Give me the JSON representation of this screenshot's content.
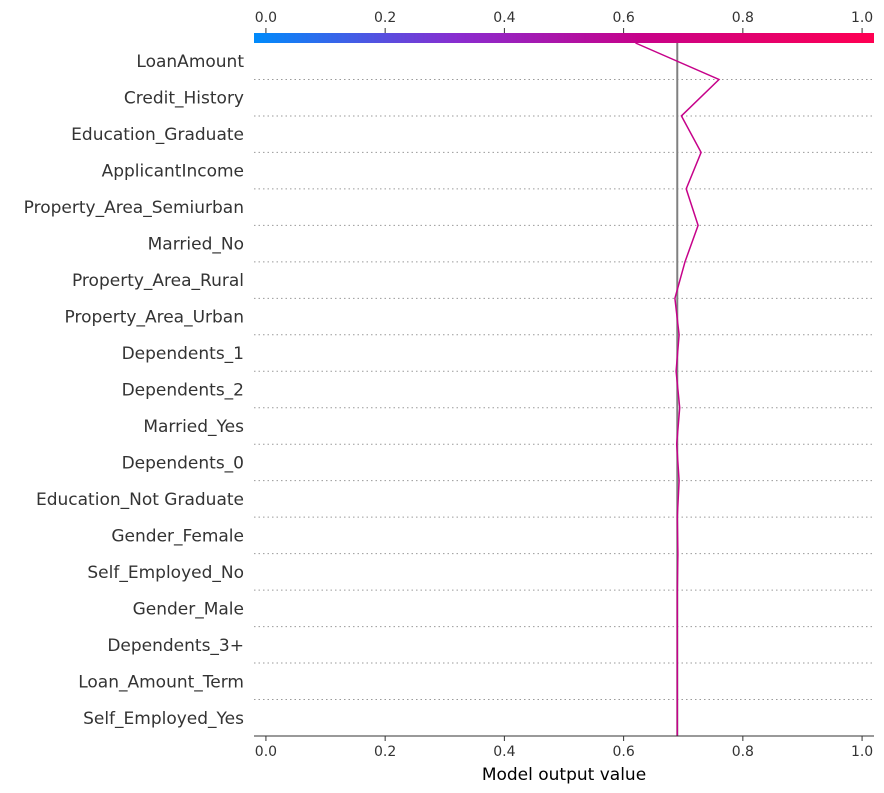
{
  "chart_data": {
    "type": "line",
    "plot_kind": "decision-plot",
    "xlabel": "Model output value",
    "xlim": [
      -0.02,
      1.02
    ],
    "x_ticks": [
      "0.0",
      "0.2",
      "0.4",
      "0.6",
      "0.8",
      "1.0"
    ],
    "tick_values": [
      0.0,
      0.2,
      0.4,
      0.6,
      0.8,
      1.0
    ],
    "base_value": 0.69,
    "colorbar": {
      "min": 0.0,
      "max": 1.0,
      "colors": [
        "#008bfb",
        "#8a2ccf",
        "#c6028a",
        "#ff0052"
      ]
    },
    "line_color": "#c6028a",
    "base_line_color": "#808080",
    "features": [
      "LoanAmount",
      "Credit_History",
      "Education_Graduate",
      "ApplicantIncome",
      "Property_Area_Semiurban",
      "Married_No",
      "Property_Area_Rural",
      "Property_Area_Urban",
      "Dependents_1",
      "Dependents_2",
      "Married_Yes",
      "Dependents_0",
      "Education_Not Graduate",
      "Gender_Female",
      "Self_Employed_No",
      "Gender_Male",
      "Dependents_3+",
      "Loan_Amount_Term",
      "Self_Employed_Yes"
    ],
    "path_top_to_bottom": [
      0.62,
      0.76,
      0.697,
      0.73,
      0.705,
      0.725,
      0.703,
      0.686,
      0.693,
      0.688,
      0.694,
      0.689,
      0.693,
      0.69,
      0.691,
      0.69,
      0.69,
      0.69,
      0.69,
      0.69
    ]
  }
}
